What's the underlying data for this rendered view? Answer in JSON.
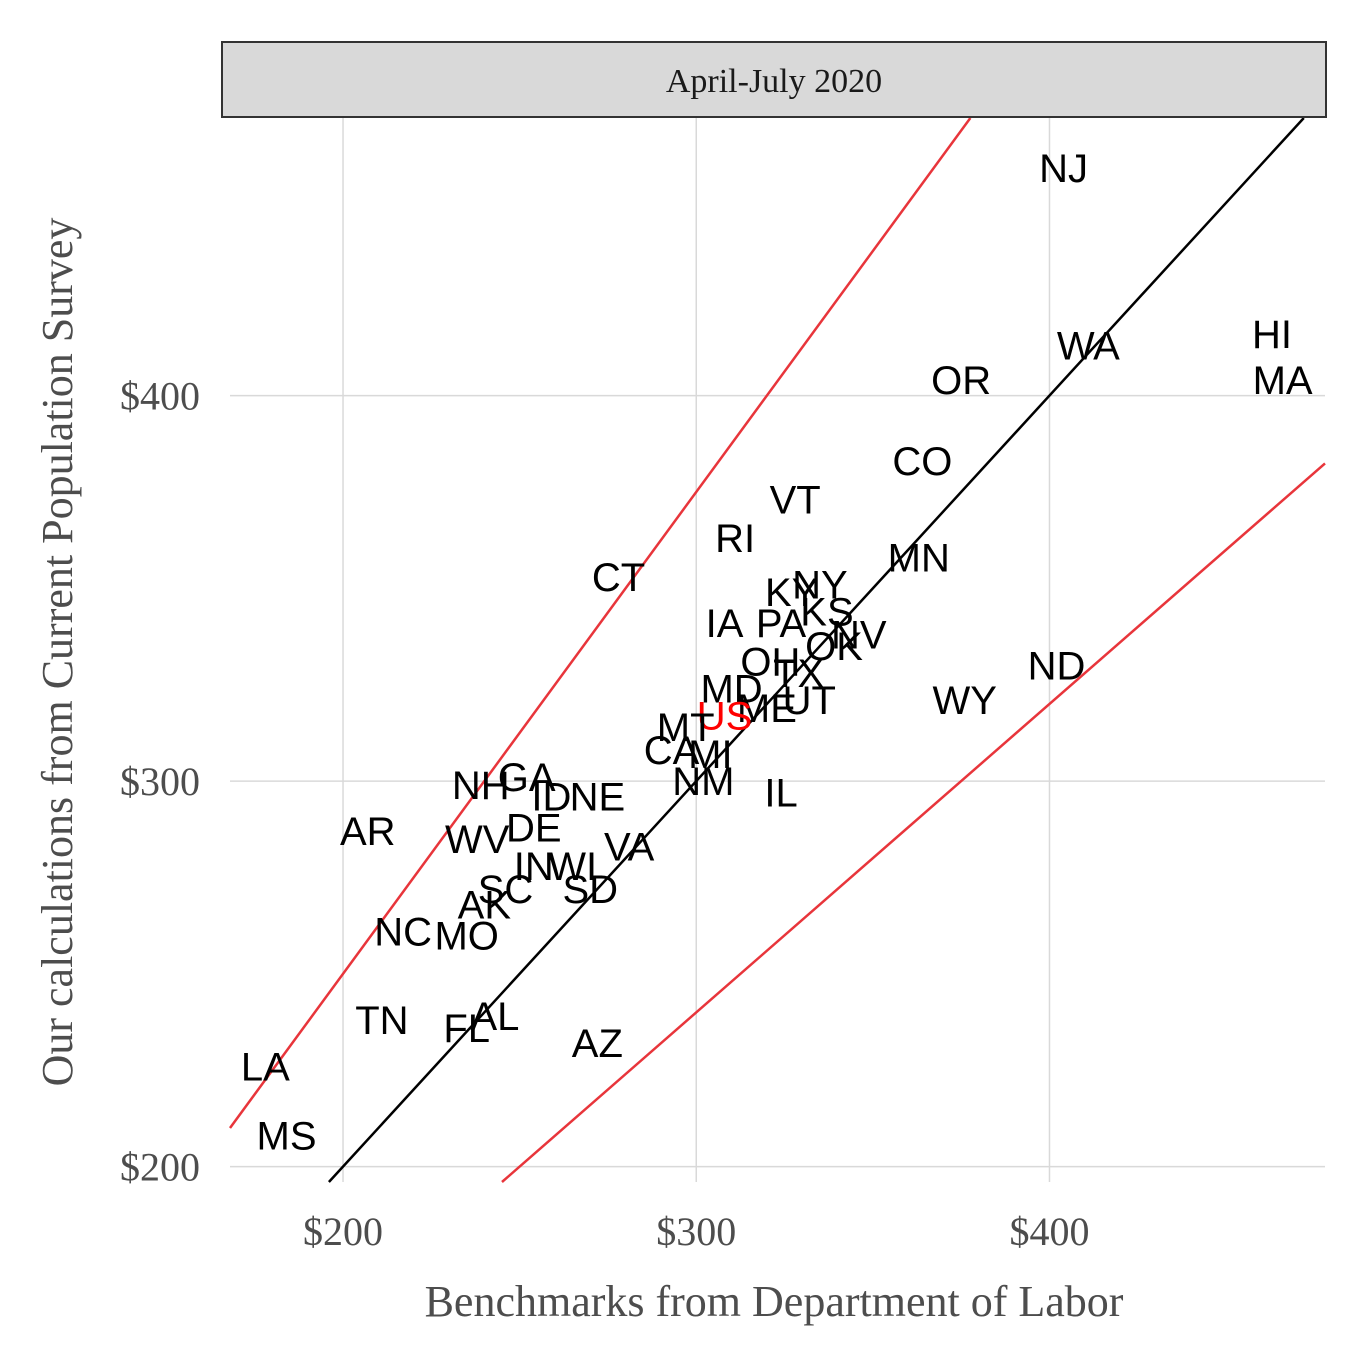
{
  "chart_data": {
    "type": "scatter",
    "facet_title": "April-July 2020",
    "xlabel": "Benchmarks from Department of Labor",
    "ylabel": "Our calculations from Current Population Survey",
    "xlim": [
      168,
      478
    ],
    "ylim": [
      196,
      472
    ],
    "x_ticks": [
      200,
      300,
      400
    ],
    "x_tick_labels": [
      "$200",
      "$300",
      "$400"
    ],
    "y_ticks": [
      200,
      300,
      400
    ],
    "y_tick_labels": [
      "$200",
      "$300",
      "$400"
    ],
    "grid": true,
    "lines": [
      {
        "kind": "identity",
        "slope": 1.0,
        "color": "#000000"
      },
      {
        "kind": "bound",
        "slope": 1.25,
        "color": "#e8353b"
      },
      {
        "kind": "bound",
        "slope": 0.8,
        "color": "#e8353b"
      }
    ],
    "point_color": "#000000",
    "highlight_color": "#ff0000",
    "points": [
      {
        "label": "NJ",
        "x": 404,
        "y": 459
      },
      {
        "label": "WA",
        "x": 411,
        "y": 413
      },
      {
        "label": "HI",
        "x": 463,
        "y": 416
      },
      {
        "label": "MA",
        "x": 466,
        "y": 404
      },
      {
        "label": "OR",
        "x": 375,
        "y": 404
      },
      {
        "label": "CO",
        "x": 364,
        "y": 383
      },
      {
        "label": "VT",
        "x": 328,
        "y": 373
      },
      {
        "label": "RI",
        "x": 311,
        "y": 363
      },
      {
        "label": "MN",
        "x": 363,
        "y": 358
      },
      {
        "label": "CT",
        "x": 278,
        "y": 353
      },
      {
        "label": "NY",
        "x": 335,
        "y": 351
      },
      {
        "label": "KY",
        "x": 327,
        "y": 349
      },
      {
        "label": "KS",
        "x": 337,
        "y": 344
      },
      {
        "label": "IA",
        "x": 308,
        "y": 341
      },
      {
        "label": "PA",
        "x": 324,
        "y": 341
      },
      {
        "label": "NV",
        "x": 346,
        "y": 338
      },
      {
        "label": "OK",
        "x": 339,
        "y": 335
      },
      {
        "label": "ND",
        "x": 402,
        "y": 330
      },
      {
        "label": "OH",
        "x": 321,
        "y": 331
      },
      {
        "label": "TX",
        "x": 329,
        "y": 328
      },
      {
        "label": "MD",
        "x": 310,
        "y": 324
      },
      {
        "label": "WY",
        "x": 376,
        "y": 321
      },
      {
        "label": "UT",
        "x": 332,
        "y": 321
      },
      {
        "label": "ME",
        "x": 320,
        "y": 319
      },
      {
        "label": "US",
        "x": 308,
        "y": 317,
        "highlight": true
      },
      {
        "label": "MT",
        "x": 297,
        "y": 314
      },
      {
        "label": "CA",
        "x": 293,
        "y": 308
      },
      {
        "label": "MI",
        "x": 304,
        "y": 307
      },
      {
        "label": "NM",
        "x": 302,
        "y": 300
      },
      {
        "label": "IL",
        "x": 324,
        "y": 297
      },
      {
        "label": "GA",
        "x": 252,
        "y": 301
      },
      {
        "label": "NH",
        "x": 239,
        "y": 299
      },
      {
        "label": "ID",
        "x": 259,
        "y": 296
      },
      {
        "label": "NE",
        "x": 272,
        "y": 296
      },
      {
        "label": "DE",
        "x": 254,
        "y": 288
      },
      {
        "label": "AR",
        "x": 207,
        "y": 287
      },
      {
        "label": "WV",
        "x": 238,
        "y": 285
      },
      {
        "label": "VA",
        "x": 281,
        "y": 283
      },
      {
        "label": "IN",
        "x": 254,
        "y": 278
      },
      {
        "label": "WI",
        "x": 265,
        "y": 278
      },
      {
        "label": "SC",
        "x": 246,
        "y": 272
      },
      {
        "label": "SD",
        "x": 270,
        "y": 272
      },
      {
        "label": "AK",
        "x": 240,
        "y": 268
      },
      {
        "label": "NC",
        "x": 217,
        "y": 261
      },
      {
        "label": "MO",
        "x": 235,
        "y": 260
      },
      {
        "label": "TN",
        "x": 211,
        "y": 238
      },
      {
        "label": "AL",
        "x": 243,
        "y": 239
      },
      {
        "label": "FL",
        "x": 235,
        "y": 236
      },
      {
        "label": "AZ",
        "x": 272,
        "y": 232
      },
      {
        "label": "LA",
        "x": 178,
        "y": 226
      },
      {
        "label": "MS",
        "x": 184,
        "y": 208
      }
    ]
  }
}
